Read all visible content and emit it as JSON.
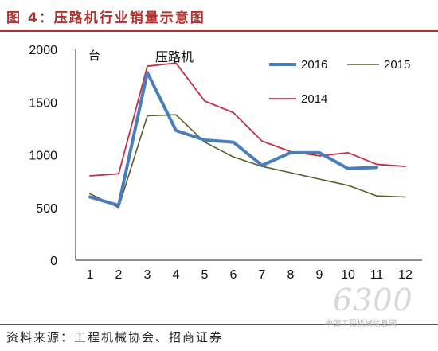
{
  "header": {
    "title": "图 4：压路机行业销量示意图"
  },
  "footer": {
    "source": "资料来源：工程机械协会、招商证券"
  },
  "watermark": {
    "number": "6300",
    "site": "中国工程机械信息网"
  },
  "chart_data": {
    "type": "line",
    "title": "压路机",
    "unit_label": "台",
    "categories": [
      1,
      2,
      3,
      4,
      5,
      6,
      7,
      8,
      9,
      10,
      11,
      12
    ],
    "ylim": [
      0,
      2000
    ],
    "yticks": [
      0,
      500,
      1000,
      1500,
      2000
    ],
    "grid": false,
    "legend_position": "top-right",
    "series": [
      {
        "name": "2016",
        "color": "#4a7ebb",
        "stroke_width": 4,
        "values": [
          600,
          520,
          1780,
          1230,
          1140,
          1120,
          900,
          1020,
          1020,
          870,
          880,
          null
        ]
      },
      {
        "name": "2015",
        "color": "#5b5b2e",
        "stroke_width": 1.6,
        "values": [
          630,
          500,
          1370,
          1380,
          1120,
          980,
          890,
          830,
          770,
          710,
          610,
          600
        ]
      },
      {
        "name": "2014",
        "color": "#c0304a",
        "stroke_width": 1.8,
        "values": [
          800,
          820,
          1840,
          1870,
          1510,
          1400,
          1130,
          1030,
          990,
          1020,
          910,
          890
        ]
      }
    ]
  }
}
